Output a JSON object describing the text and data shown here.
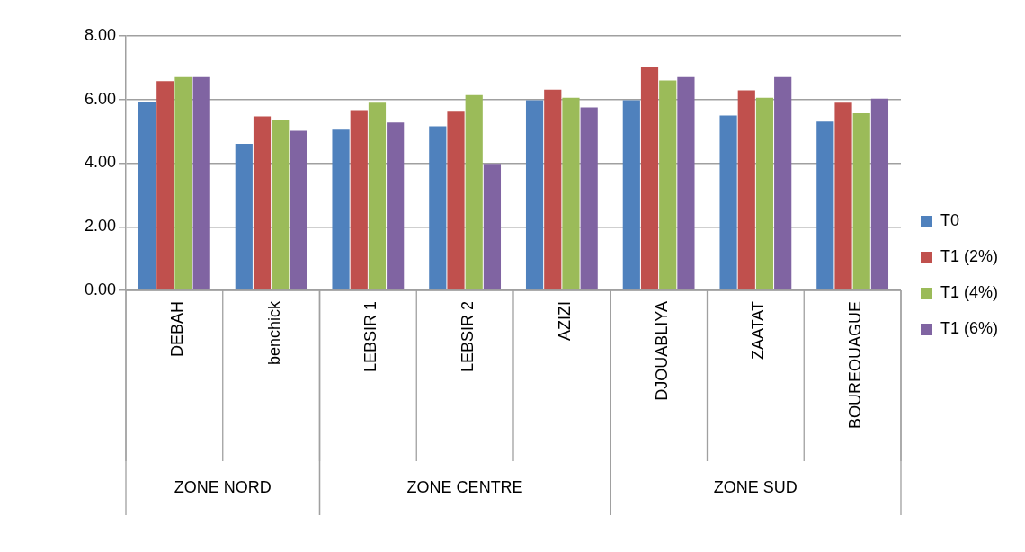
{
  "chart_data": {
    "type": "bar",
    "categories": [
      "DEBAH",
      "benchick",
      "LEBSIR 1",
      "LEBSIR 2",
      "AZIZI",
      "DJOUABLIYA",
      "ZAATAT",
      "BOUREOUAGUE"
    ],
    "series": [
      {
        "name": "T0",
        "color": "#4f81bd",
        "values": [
          5.93,
          4.61,
          5.05,
          5.16,
          5.98,
          5.98,
          5.5,
          5.31
        ]
      },
      {
        "name": "T1 (2%)",
        "color": "#c0504d",
        "values": [
          6.58,
          5.47,
          5.67,
          5.62,
          6.31,
          7.04,
          6.29,
          5.9
        ]
      },
      {
        "name": "T1 (4%)",
        "color": "#9bbb59",
        "values": [
          6.71,
          5.36,
          5.9,
          6.14,
          6.06,
          6.6,
          6.06,
          5.57
        ]
      },
      {
        "name": "T1 (6%)",
        "color": "#8064a2",
        "values": [
          6.71,
          5.02,
          5.28,
          3.98,
          5.75,
          6.71,
          6.71,
          6.03
        ]
      }
    ],
    "ylim": [
      0,
      8
    ],
    "yticks": [
      {
        "value": 0,
        "label": "0.00"
      },
      {
        "value": 2,
        "label": "2.00"
      },
      {
        "value": 4,
        "label": "4.00"
      },
      {
        "value": 6,
        "label": "6.00"
      },
      {
        "value": 8,
        "label": "8.00"
      }
    ],
    "grid": "y",
    "legend": "right",
    "annotations": [
      "ZONE NORD",
      "ZONE CENTRE",
      "ZONE SUD"
    ]
  }
}
